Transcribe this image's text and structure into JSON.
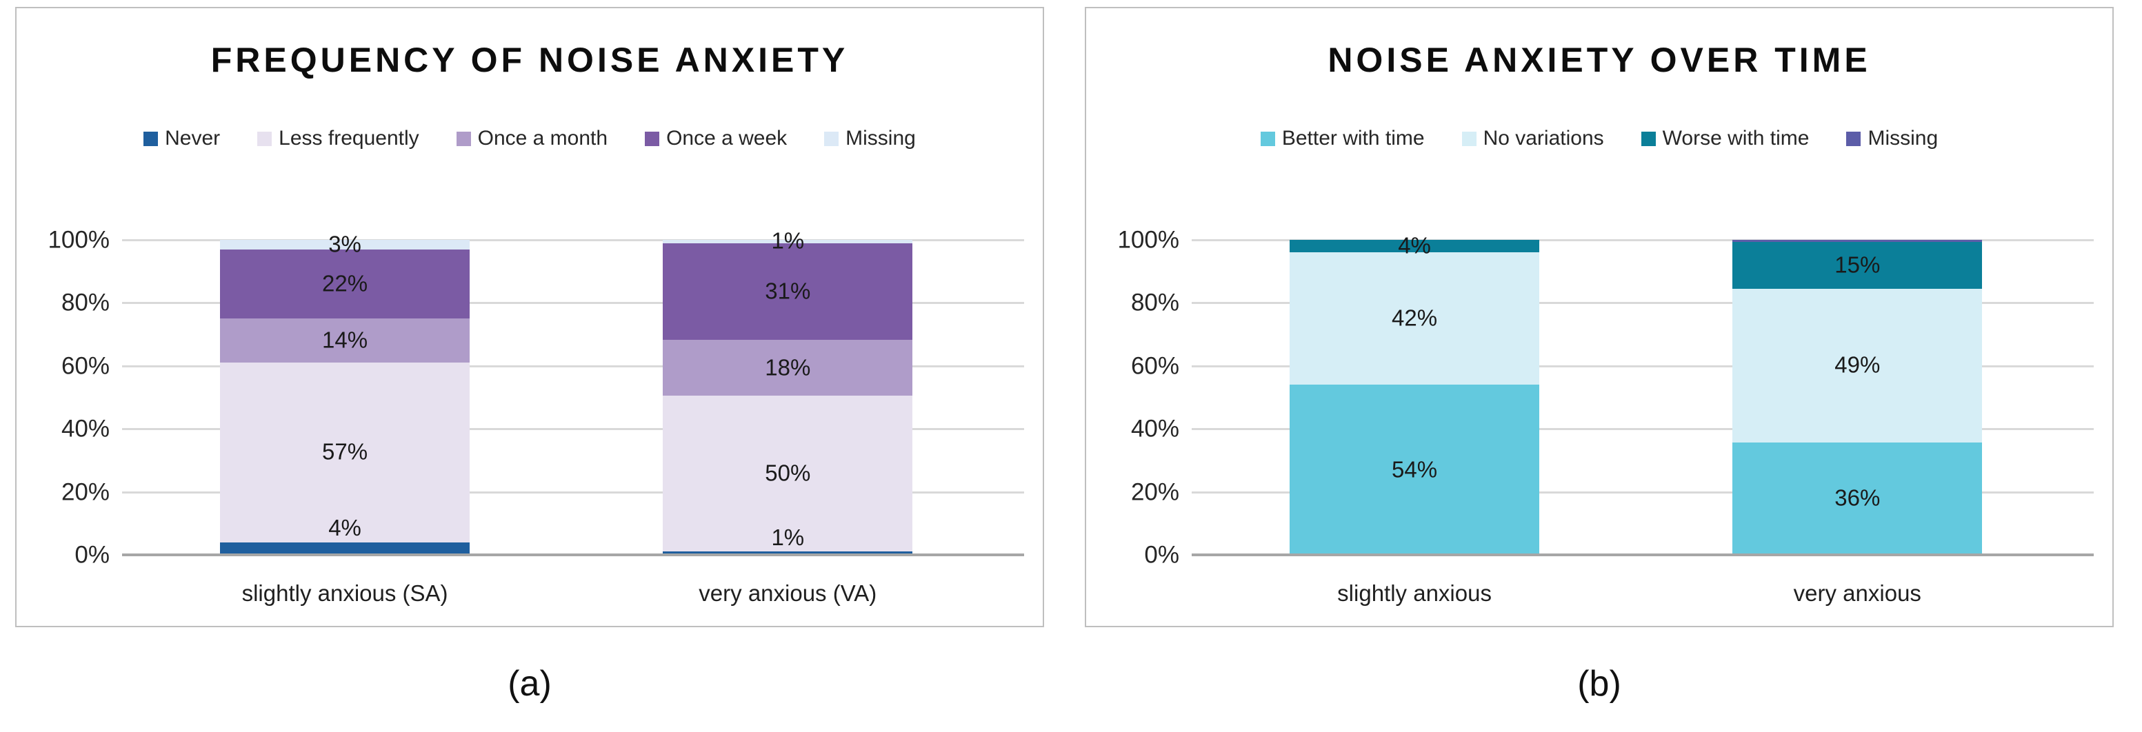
{
  "figure": {
    "captions": {
      "a": "(a)",
      "b": "(b)"
    }
  },
  "chart_data": [
    {
      "type": "bar",
      "variant": "100%-stacked-column",
      "title": "FREQUENCY OF NOISE ANXIETY",
      "caption": "(a)",
      "xlabel": "",
      "ylabel": "",
      "ylim": [
        0,
        100
      ],
      "grid": true,
      "legend_position": "top",
      "y_ticks": [
        "0%",
        "20%",
        "40%",
        "60%",
        "80%",
        "100%"
      ],
      "categories": [
        "slightly anxious (SA)",
        "very anxious (VA)"
      ],
      "series": [
        {
          "name": "Never",
          "color": "#1F5F9E",
          "values": [
            4,
            1
          ],
          "labels": [
            "4%",
            "1%"
          ]
        },
        {
          "name": "Less frequently",
          "color": "#E7E1EF",
          "values": [
            57,
            50
          ],
          "labels": [
            "57%",
            "50%"
          ]
        },
        {
          "name": "Once a month",
          "color": "#AF9CC9",
          "values": [
            14,
            18
          ],
          "labels": [
            "14%",
            "18%"
          ]
        },
        {
          "name": "Once a week",
          "color": "#7B5BA4",
          "values": [
            22,
            31
          ],
          "labels": [
            "22%",
            "31%"
          ]
        },
        {
          "name": "Missing",
          "color": "#DCE9F6",
          "values": [
            3,
            1
          ],
          "labels": [
            "3%",
            "1%"
          ]
        }
      ]
    },
    {
      "type": "bar",
      "variant": "100%-stacked-column",
      "title": "NOISE ANXIETY OVER TIME",
      "caption": "(b)",
      "xlabel": "",
      "ylabel": "",
      "ylim": [
        0,
        100
      ],
      "grid": true,
      "legend_position": "top",
      "y_ticks": [
        "0%",
        "20%",
        "40%",
        "60%",
        "80%",
        "100%"
      ],
      "categories": [
        "slightly anxious",
        "very anxious"
      ],
      "series": [
        {
          "name": "Better with time",
          "color": "#63C9DE",
          "values": [
            54,
            36
          ],
          "labels": [
            "54%",
            "36%"
          ]
        },
        {
          "name": "No variations",
          "color": "#D6EEF6",
          "values": [
            42,
            49
          ],
          "labels": [
            "42%",
            "49%"
          ]
        },
        {
          "name": "Worse with time",
          "color": "#0B7F99",
          "values": [
            4,
            15
          ],
          "labels": [
            "4%",
            "15%"
          ]
        },
        {
          "name": "Missing",
          "color": "#5C5DA8",
          "values": [
            0,
            0.7
          ],
          "labels": [
            "",
            ""
          ]
        }
      ]
    }
  ]
}
